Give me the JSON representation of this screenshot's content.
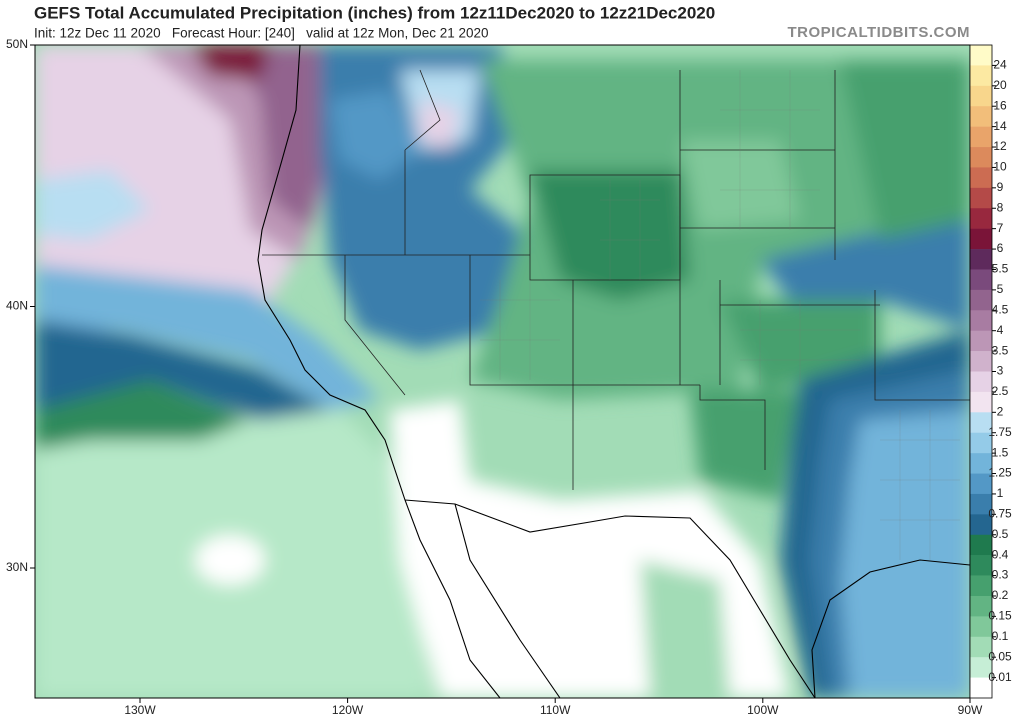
{
  "header": {
    "title": "GEFS Total Accumulated Precipitation (inches) from 12z11Dec2020 to 12z21Dec2020",
    "subtitle": "Init: 12z Dec 11 2020   Forecast Hour: [240]   valid at 12z Mon, Dec 21 2020",
    "watermark": "TROPICALTIDBITS.COM"
  },
  "map": {
    "lat_labels": [
      "50N",
      "40N",
      "30N"
    ],
    "lon_labels": [
      "130W",
      "120W",
      "110W",
      "100W",
      "90W"
    ]
  },
  "colorbar": {
    "labels": [
      "24",
      "20",
      "16",
      "14",
      "12",
      "10",
      "9",
      "8",
      "7",
      "6",
      "5.5",
      "5",
      "4.5",
      "4",
      "3.5",
      "3",
      "2.5",
      "2",
      "1.75",
      "1.5",
      "1.25",
      "1",
      "0.75",
      "0.5",
      "0.4",
      "0.3",
      "0.2",
      "0.15",
      "0.1",
      "0.05",
      "0.01"
    ],
    "colors": [
      "#fffbc8",
      "#fce9a2",
      "#f8d68c",
      "#f2be7a",
      "#e9a46a",
      "#dc8a5c",
      "#cc6c52",
      "#b44a48",
      "#98283e",
      "#7a1438",
      "#5e2a5c",
      "#7a4a7c",
      "#92648e",
      "#a87ca2",
      "#bc96b6",
      "#d0b2cc",
      "#e6d2e6",
      "#f2e4f0",
      "#b8def2",
      "#94cbe8",
      "#72b4da",
      "#5398c6",
      "#3a7eac",
      "#246690",
      "#1f7a4e",
      "#2e8a5c",
      "#46a06e",
      "#62b483",
      "#80c89a",
      "#a2dcb6",
      "#c6eed6",
      "#ffffff"
    ]
  }
}
